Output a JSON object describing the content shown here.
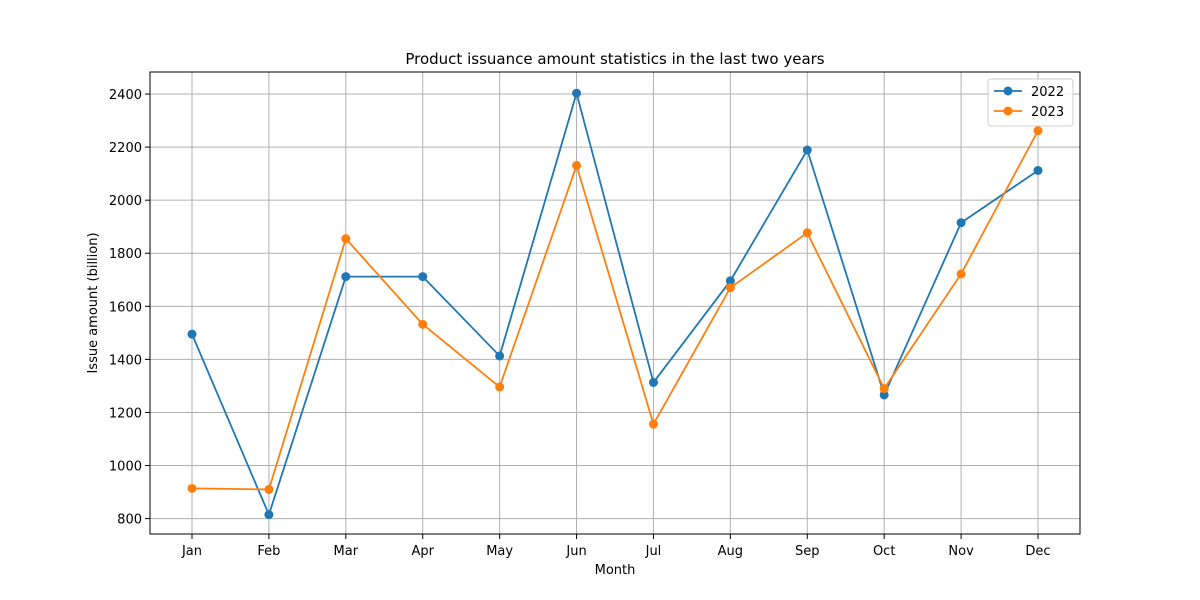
{
  "chart_data": {
    "type": "line",
    "title": "Product issuance amount statistics in the last two years",
    "xlabel": "Month",
    "ylabel": "Issue amount (billion)",
    "categories": [
      "Jan",
      "Feb",
      "Mar",
      "Apr",
      "May",
      "Jun",
      "Jul",
      "Aug",
      "Sep",
      "Oct",
      "Nov",
      "Dec"
    ],
    "series": [
      {
        "name": "2022",
        "color": "#1f77b4",
        "values": [
          1495,
          815,
          1712,
          1712,
          1413,
          2403,
          1313,
          1696,
          2189,
          1266,
          1915,
          2112
        ]
      },
      {
        "name": "2023",
        "color": "#ff7f0e",
        "values": [
          914,
          910,
          1855,
          1532,
          1296,
          2131,
          1156,
          1670,
          1877,
          1290,
          1722,
          2262
        ]
      }
    ],
    "ylim": [
      742,
      2483
    ],
    "yticks": [
      800,
      1000,
      1200,
      1400,
      1600,
      1800,
      2000,
      2200,
      2400
    ],
    "grid": true,
    "legend_position": "top-right"
  }
}
